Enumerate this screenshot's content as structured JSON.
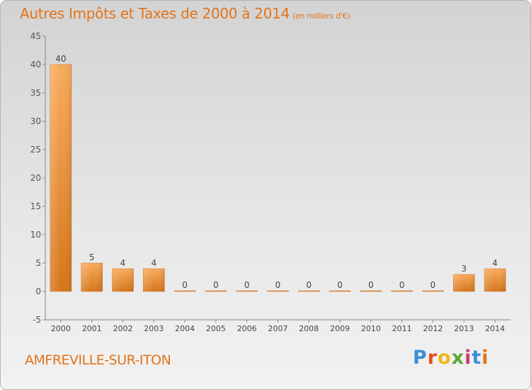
{
  "title": "Autres Impôts et Taxes de 2000 à 2014",
  "unit_label": "(en milliers d'€)",
  "commune": "AMFREVILLE-SUR-ITON",
  "logo": {
    "letters": [
      "P",
      "r",
      "o",
      "x",
      "i",
      "t",
      "i"
    ]
  },
  "colors": {
    "bar_light": "#f7a452",
    "bar_dark": "#d97a1e",
    "title": "#e2741a"
  },
  "chart_data": {
    "type": "bar",
    "title": "Autres Impôts et Taxes de 2000 à 2014",
    "categories": [
      "2000",
      "2001",
      "2002",
      "2003",
      "2004",
      "2005",
      "2006",
      "2007",
      "2008",
      "2009",
      "2010",
      "2011",
      "2012",
      "2013",
      "2014"
    ],
    "values": [
      40,
      5,
      4,
      4,
      0,
      0,
      0,
      0,
      0,
      0,
      0,
      0,
      0,
      3,
      4
    ],
    "ylim": [
      -5,
      45
    ],
    "yticks": [
      -5,
      0,
      5,
      10,
      15,
      20,
      25,
      30,
      35,
      40,
      45
    ],
    "grid": false,
    "xlabel": "",
    "ylabel": ""
  }
}
